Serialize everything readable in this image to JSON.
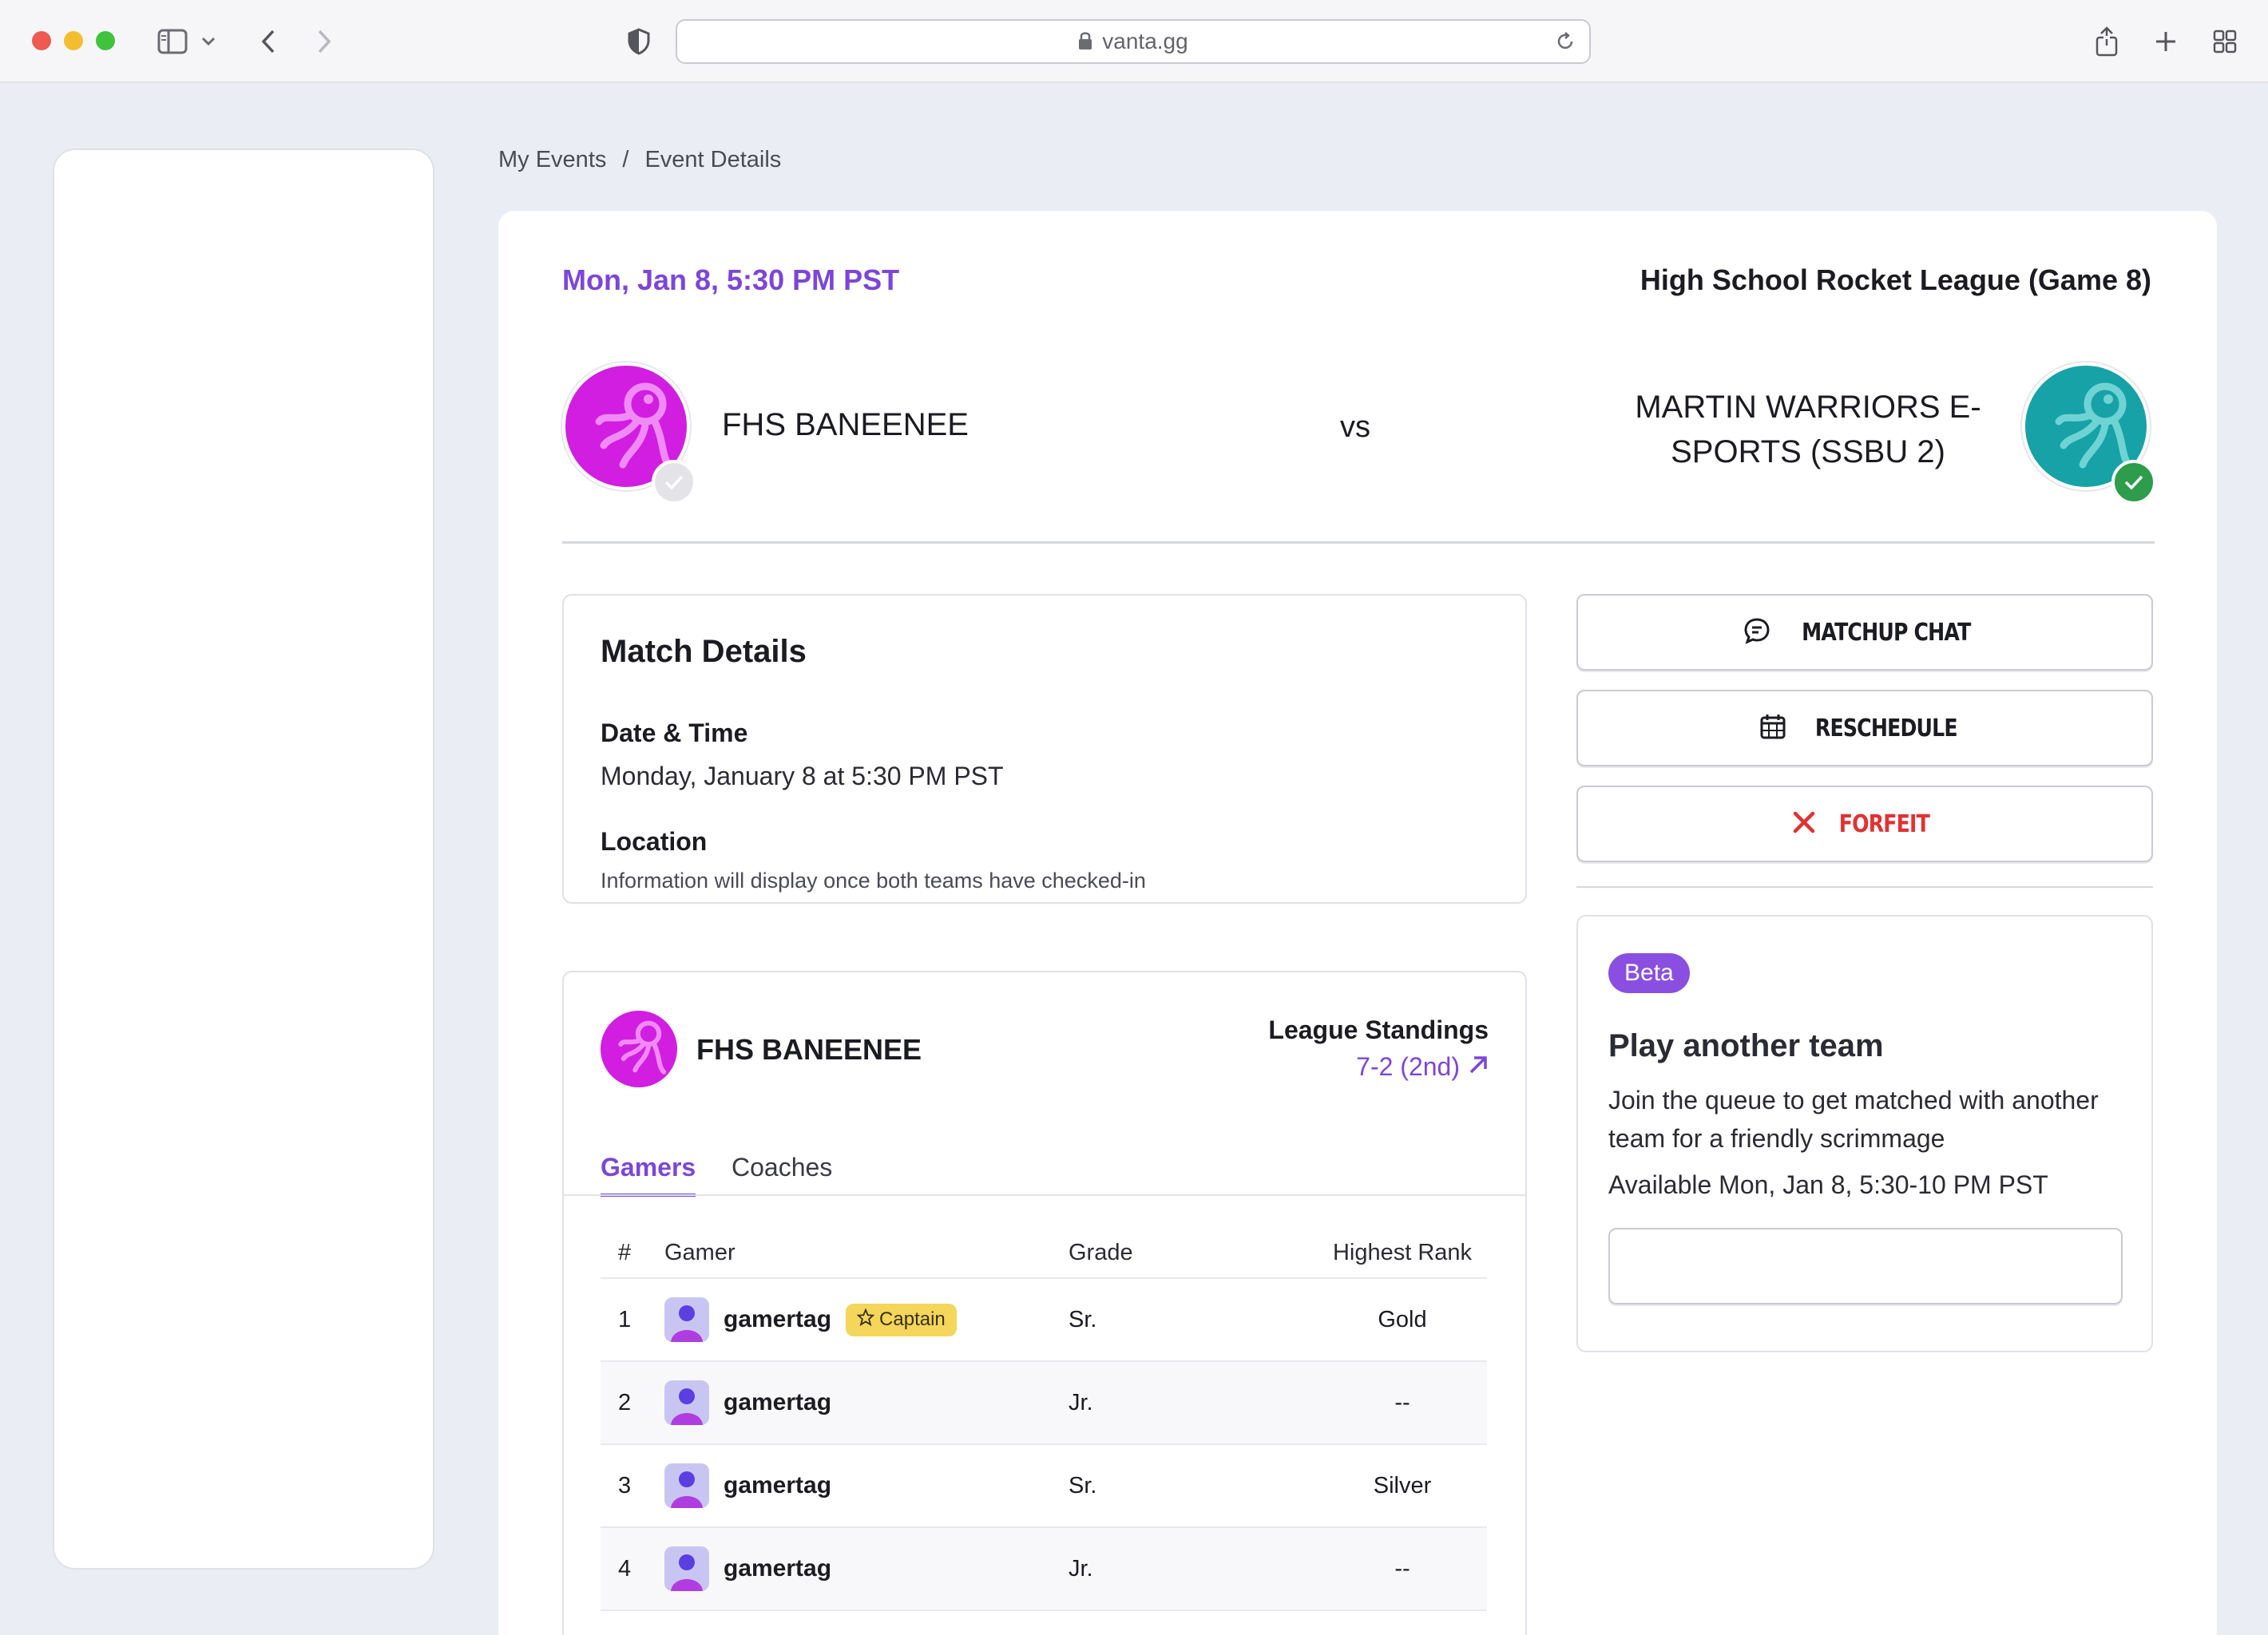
{
  "browser": {
    "url": "vanta.gg"
  },
  "breadcrumb": {
    "items": [
      "My Events",
      "/",
      "Event Details"
    ]
  },
  "event": {
    "datetime_short": "Mon, Jan 8, 5:30 PM PST",
    "league": "High School Rocket League (Game 8)",
    "home_team": "FHS BANEENEE",
    "vs": "vs",
    "away_team": "MARTIN WARRIORS E-SPORTS (SSBU 2)"
  },
  "match_details": {
    "title": "Match Details",
    "date_label": "Date & Time",
    "date_value": "Monday, January 8 at 5:30 PM PST",
    "location_label": "Location",
    "location_value": "Information will display once both teams have checked-in"
  },
  "team_card": {
    "name": "FHS BANEENEE",
    "standings_label": "League Standings",
    "standings_value": "7-2 (2nd)",
    "tabs": [
      "Gamers",
      "Coaches"
    ],
    "columns": [
      "#",
      "Gamer",
      "Grade",
      "Highest Rank"
    ],
    "captain_label": "Captain",
    "rows": [
      {
        "num": "1",
        "gamer": "gamertag",
        "grade": "Sr.",
        "rank": "Gold"
      },
      {
        "num": "2",
        "gamer": "gamertag",
        "grade": "Jr.",
        "rank": "--"
      },
      {
        "num": "3",
        "gamer": "gamertag",
        "grade": "Sr.",
        "rank": "Silver"
      },
      {
        "num": "4",
        "gamer": "gamertag",
        "grade": "Jr.",
        "rank": "--"
      }
    ]
  },
  "actions": {
    "chat": "MATCHUP CHAT",
    "reschedule": "RESCHEDULE",
    "forfeit": "FORFEIT"
  },
  "queue": {
    "badge": "Beta",
    "title": "Play another team",
    "description": "Join the queue to get matched with another team for a friendly scrimmage",
    "availability": "Available Mon, Jan 8, 5:30-10 PM PST"
  },
  "colors": {
    "accent": "#7c46d9",
    "home_team": "#d11ee0",
    "away_team": "#16a2a6",
    "check_green": "#2d9c4b",
    "forfeit_red": "#e03232",
    "captain_yellow": "#f3d65a"
  }
}
